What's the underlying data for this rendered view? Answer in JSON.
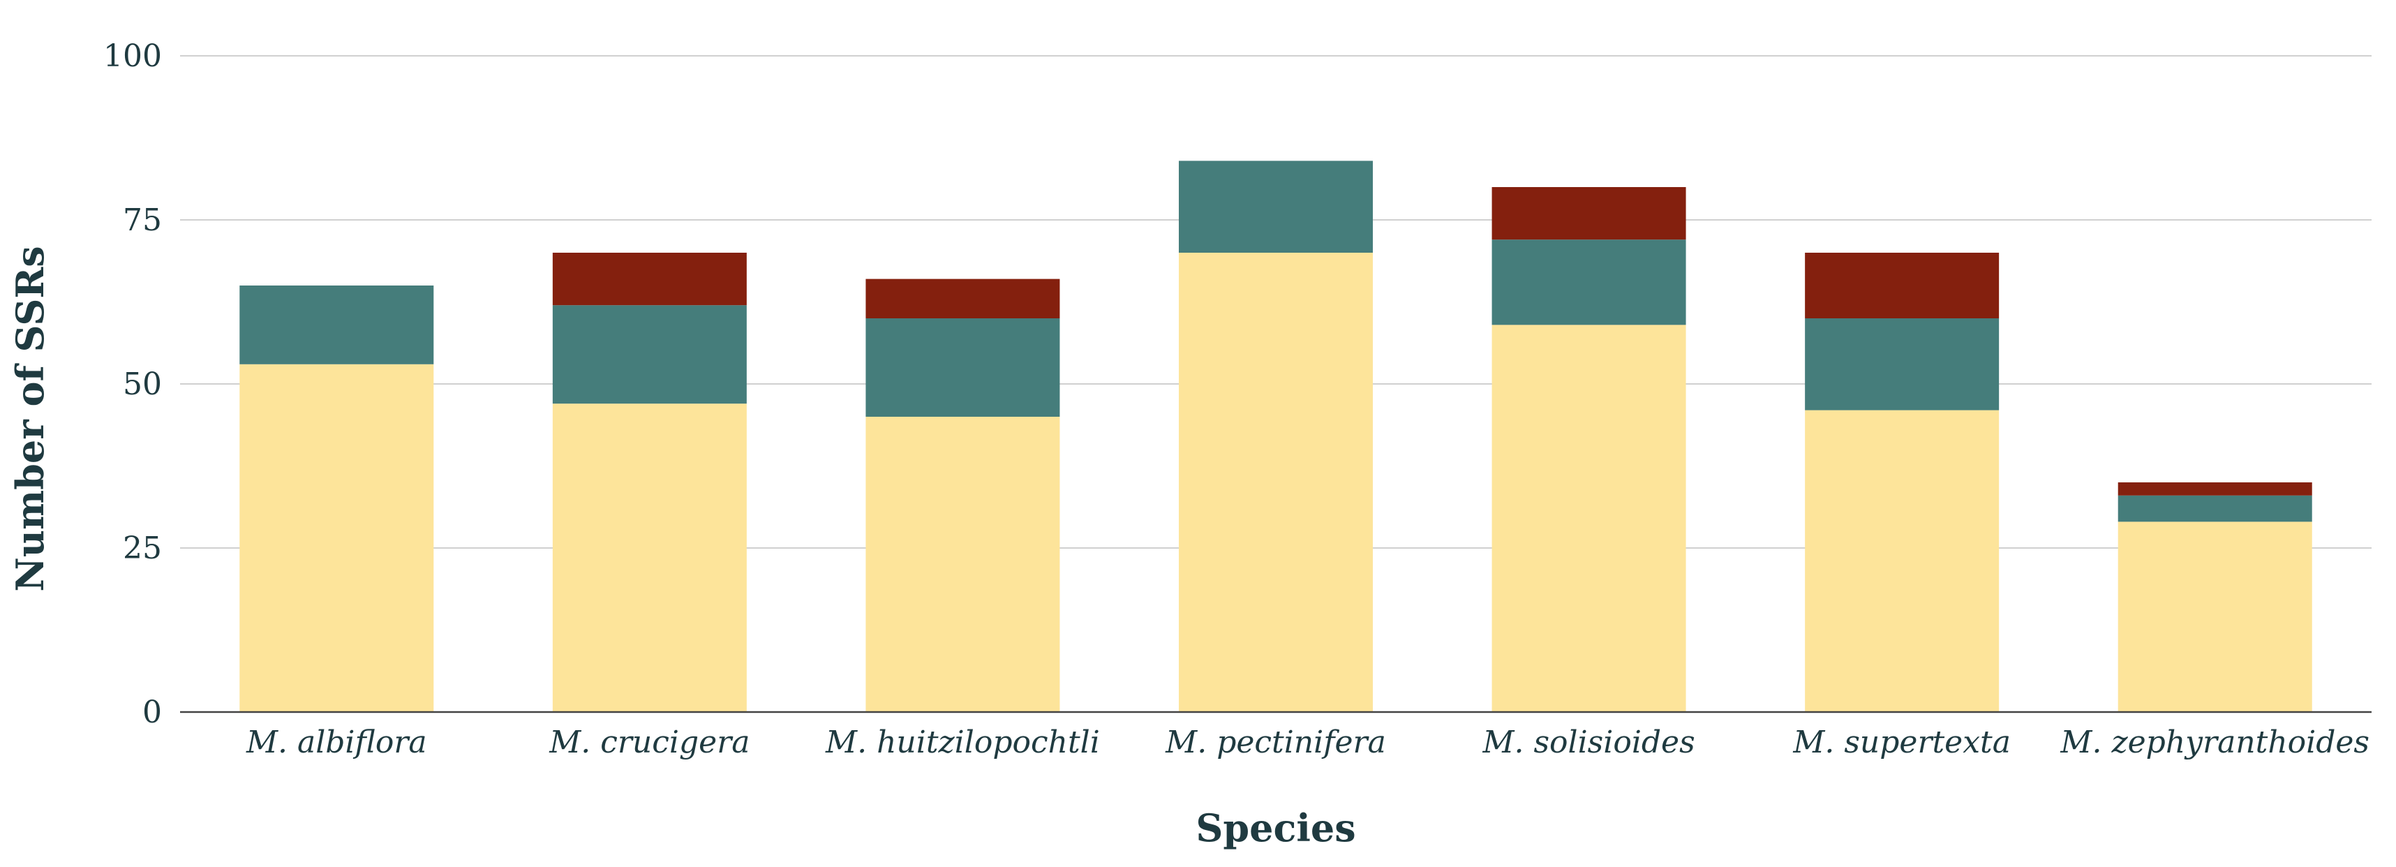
{
  "chart_data": {
    "type": "bar",
    "stacked": true,
    "title": "",
    "xlabel": "Species",
    "ylabel": "Number of SSRs",
    "ylim": [
      0,
      100
    ],
    "yticks": [
      0,
      25,
      50,
      75,
      100
    ],
    "grid": true,
    "legend": "none",
    "categories": [
      "M. albiflora",
      "M. crucigera",
      "M. huitzilopochtli",
      "M. pectinifera",
      "M. solisioides",
      "M. supertexta",
      "M. zephyranthoides"
    ],
    "series": [
      {
        "color": "#fde49a",
        "values": [
          53,
          47,
          45,
          70,
          59,
          46,
          29
        ]
      },
      {
        "color": "#457d7b",
        "values": [
          12,
          15,
          15,
          14,
          13,
          14,
          4
        ]
      },
      {
        "color": "#84200e",
        "values": [
          0,
          8,
          6,
          0,
          8,
          10,
          2
        ]
      }
    ]
  }
}
